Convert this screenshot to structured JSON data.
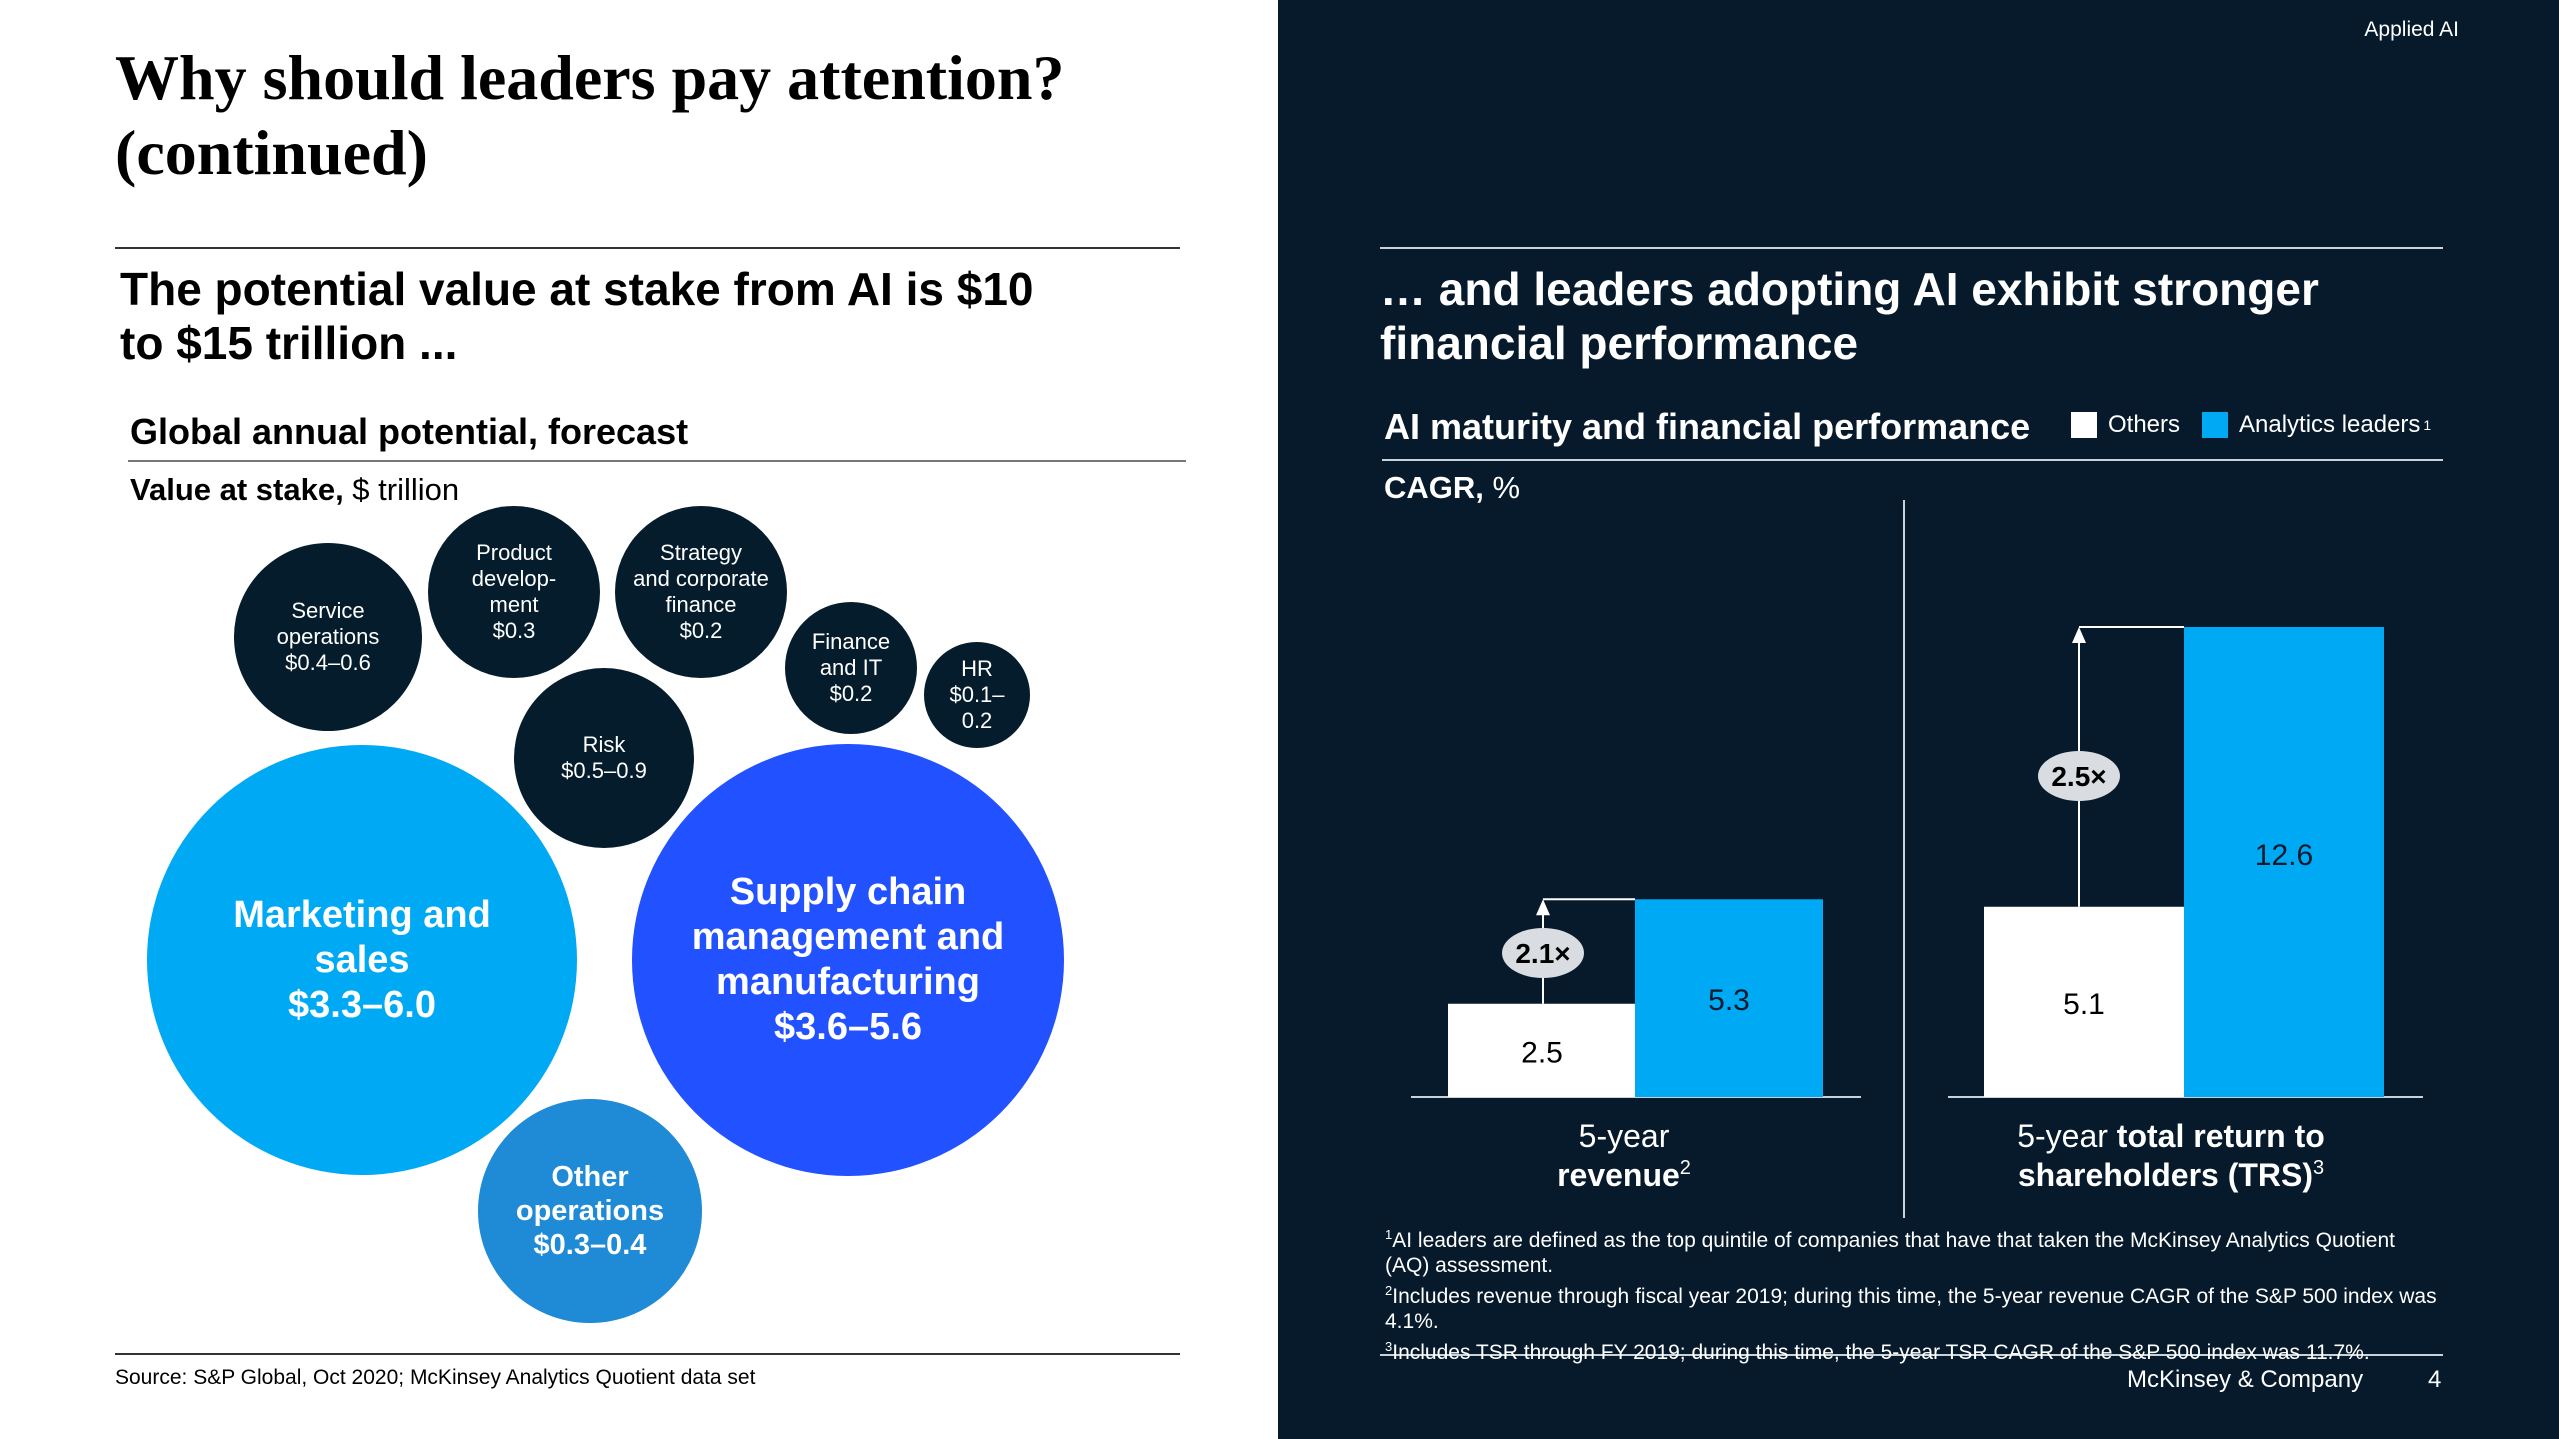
{
  "left": {
    "title": "Why should leaders pay attention? (continued)",
    "subtitle": "The potential value at stake from AI is $10 to $15 trillion ...",
    "chart_title": "Global annual potential, forecast",
    "unit_bold": "Value at stake,",
    "unit_rest": " $ trillion",
    "source": "Source: S&P Global, Oct 2020; McKinsey Analytics Quotient data set"
  },
  "right": {
    "tag": "Applied AI",
    "subtitle": "… and leaders adopting AI exhibit stronger financial performance",
    "chart_title": "AI maturity and financial performance",
    "unit_bold": "CAGR,",
    "unit_rest": " %",
    "legend": [
      {
        "label": "Others",
        "color": "#ffffff"
      },
      {
        "label": "Analytics leaders",
        "sup": "1",
        "color": "#00a9f4"
      }
    ],
    "footnotes": [
      {
        "sup": "1",
        "text": "AI leaders are defined as the top quintile of companies that have that taken the McKinsey Analytics Quotient (AQ) assessment."
      },
      {
        "sup": "2",
        "text": "Includes revenue through fiscal year 2019; during this time, the 5-year revenue CAGR of the S&P 500 index was 4.1%."
      },
      {
        "sup": "3",
        "text": "Includes TSR through FY 2019; during this time, the 5-year TSR CAGR of the S&P 500 index was 11.7%."
      }
    ],
    "company": "McKinsey & Company",
    "page": "4"
  },
  "chart_data": [
    {
      "type": "bubble",
      "title": "Global annual potential, forecast",
      "ylabel": "Value at stake, $ trillion",
      "items": [
        {
          "label": "Service\noperations",
          "value": "$0.4–0.6",
          "low": 0.4,
          "high": 0.6,
          "color": "#051c2c"
        },
        {
          "label": "Product\ndevelop-\nment",
          "value": "$0.3",
          "low": 0.3,
          "high": 0.3,
          "color": "#051c2c"
        },
        {
          "label": "Strategy\nand corporate\nfinance",
          "value": "$0.2",
          "low": 0.2,
          "high": 0.2,
          "color": "#051c2c"
        },
        {
          "label": "Finance\nand IT",
          "value": "$0.2",
          "low": 0.2,
          "high": 0.2,
          "color": "#051c2c"
        },
        {
          "label": "HR",
          "value": "$0.1–\n0.2",
          "low": 0.1,
          "high": 0.2,
          "color": "#051c2c"
        },
        {
          "label": "Risk",
          "value": "$0.5–0.9",
          "low": 0.5,
          "high": 0.9,
          "color": "#051c2c"
        },
        {
          "label": "Marketing and\nsales",
          "value": "$3.3–6.0",
          "low": 3.3,
          "high": 6.0,
          "color": "#00a9f4"
        },
        {
          "label": "Supply chain\nmanagement and\nmanufacturing",
          "value": "$3.6–5.6",
          "low": 3.6,
          "high": 5.6,
          "color": "#2251ff"
        },
        {
          "label": "Other\noperations",
          "value": "$0.3–0.4",
          "low": 0.3,
          "high": 0.4,
          "color": "#1f8ad6"
        }
      ]
    },
    {
      "type": "bar",
      "title": "AI maturity and financial performance",
      "ylabel": "CAGR, %",
      "ylim": [
        0,
        12.6
      ],
      "categories": [
        {
          "parts": [
            {
              "t": "5-year",
              "b": false
            }
          ],
          "parts2": [
            {
              "t": "revenue",
              "b": true
            },
            {
              "t": "2",
              "sup": true
            }
          ]
        },
        {
          "parts": [
            {
              "t": "5-year ",
              "b": false
            },
            {
              "t": "total return to",
              "b": true
            }
          ],
          "parts2": [
            {
              "t": "shareholders (TRS)",
              "b": true
            },
            {
              "t": "3",
              "sup": true
            }
          ]
        }
      ],
      "series": [
        {
          "name": "Others",
          "values": [
            2.5,
            5.1
          ]
        },
        {
          "name": "Analytics leaders",
          "values": [
            5.3,
            12.6
          ]
        }
      ],
      "value_labels": [
        [
          "2.5",
          "5.1"
        ],
        [
          "5.3",
          "12.6"
        ]
      ],
      "multipliers": [
        "2.1×",
        "2.5×"
      ]
    }
  ]
}
